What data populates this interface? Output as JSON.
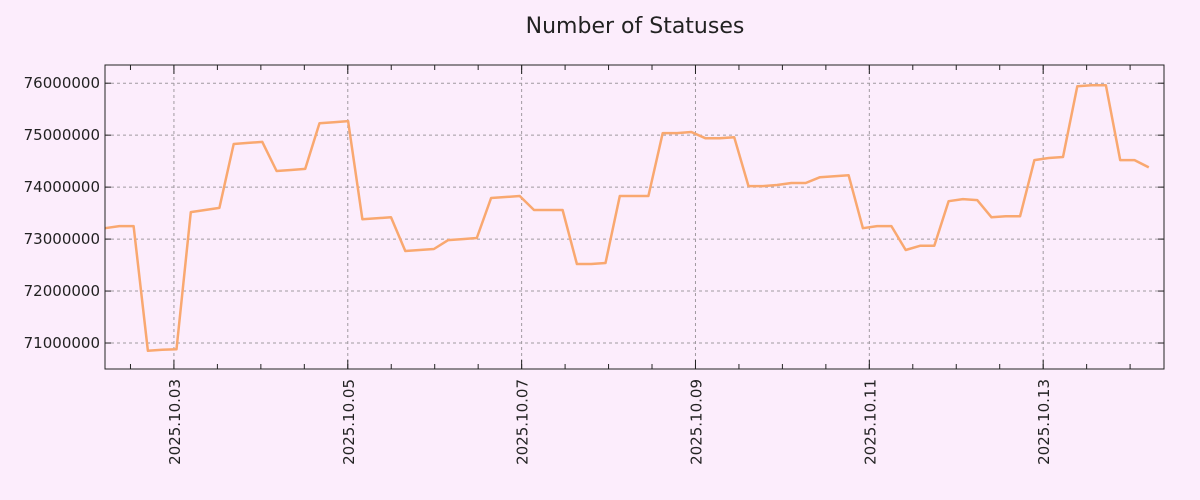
{
  "chart_data": {
    "type": "line",
    "title": "Number of Statuses",
    "xlabel": "",
    "ylabel": "",
    "x_units": "day of October 2025",
    "x_start_day": 2.207,
    "x_step_days": 0.1645,
    "xlim": [
      2.207,
      14.39
    ],
    "ylim": [
      70500000,
      76350000
    ],
    "grid": true,
    "legend": "none",
    "line_color": "#f9a870",
    "background": "#fcedfc",
    "x_ticks": [
      {
        "day": 3,
        "label": "2025.10.03"
      },
      {
        "day": 5,
        "label": "2025.10.05"
      },
      {
        "day": 7,
        "label": "2025.10.07"
      },
      {
        "day": 9,
        "label": "2025.10.09"
      },
      {
        "day": 11,
        "label": "2025.10.11"
      },
      {
        "day": 13,
        "label": "2025.10.13"
      }
    ],
    "y_ticks": [
      {
        "value": 71000000,
        "label": "71000000"
      },
      {
        "value": 72000000,
        "label": "72000000"
      },
      {
        "value": 73000000,
        "label": "73000000"
      },
      {
        "value": 74000000,
        "label": "74000000"
      },
      {
        "value": 75000000,
        "label": "75000000"
      },
      {
        "value": 76000000,
        "label": "76000000"
      }
    ],
    "series": [
      {
        "name": "Number of Statuses",
        "values": [
          73210000,
          73250000,
          73250000,
          70850000,
          70870000,
          70880000,
          73520000,
          73560000,
          73600000,
          74830000,
          74850000,
          74870000,
          74310000,
          74330000,
          74350000,
          75230000,
          75250000,
          75270000,
          73380000,
          73400000,
          73420000,
          72770000,
          72790000,
          72810000,
          72980000,
          73000000,
          73020000,
          73790000,
          73810000,
          73830000,
          73560000,
          73560000,
          73560000,
          72520000,
          72520000,
          72540000,
          73830000,
          73830000,
          73830000,
          75040000,
          75040000,
          75060000,
          74940000,
          74940000,
          74960000,
          74020000,
          74020000,
          74040000,
          74080000,
          74080000,
          74190000,
          74210000,
          74230000,
          73210000,
          73250000,
          73250000,
          72790000,
          72870000,
          72870000,
          73730000,
          73770000,
          73750000,
          73420000,
          73440000,
          73440000,
          74520000,
          74560000,
          74580000,
          75940000,
          75960000,
          75960000,
          74520000,
          74520000,
          74380000
        ]
      }
    ]
  }
}
